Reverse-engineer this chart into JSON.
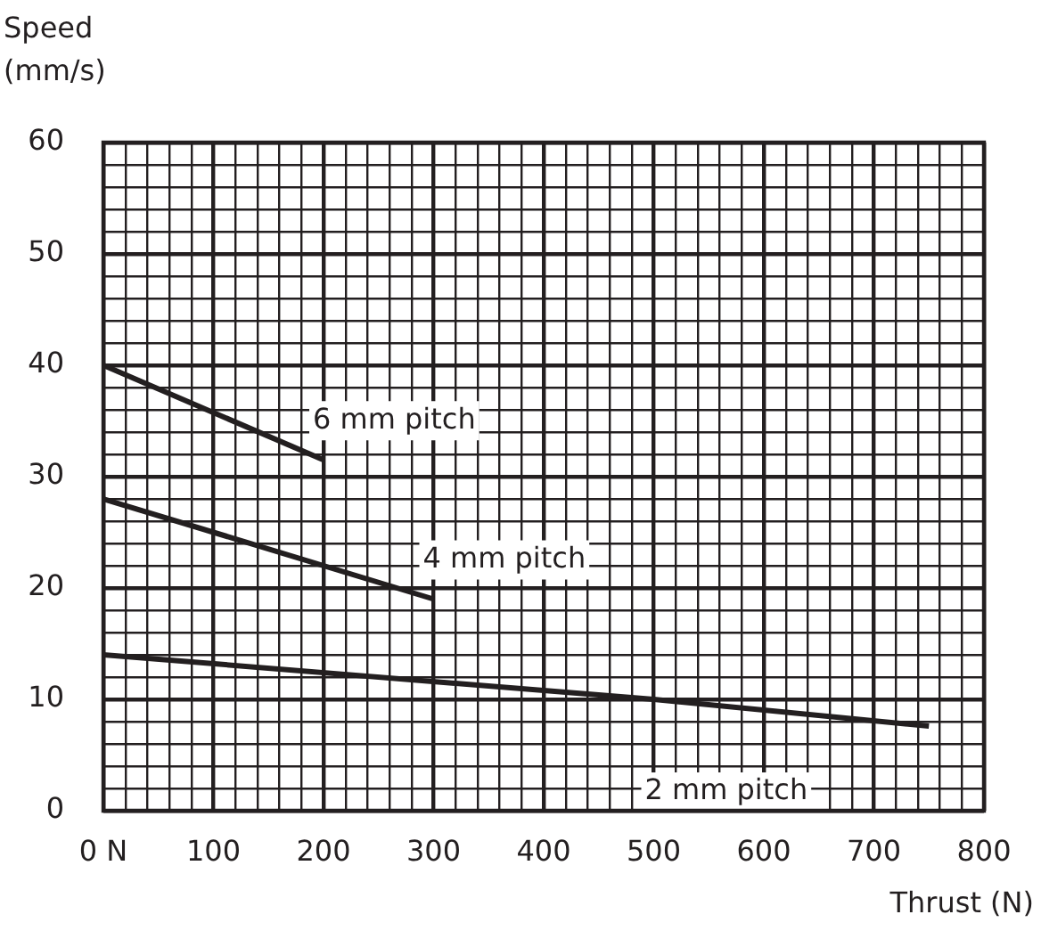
{
  "chart_data": {
    "type": "line",
    "xlabel": "Thrust (N)",
    "ylabel": "Speed (mm/s)",
    "xlim": [
      0,
      800
    ],
    "ylim": [
      0,
      60
    ],
    "grid": true,
    "legend": false,
    "marker": "none",
    "line_style": "solid",
    "xticks": [
      {
        "value": 0,
        "label": "0 N"
      },
      {
        "value": 20,
        "label": null
      },
      {
        "value": 40,
        "label": null
      },
      {
        "value": 60,
        "label": null
      },
      {
        "value": 80,
        "label": null
      },
      100,
      {
        "value": 120,
        "label": null
      },
      {
        "value": 140,
        "label": null
      },
      {
        "value": 160,
        "label": null
      },
      {
        "value": 180,
        "label": null
      },
      200,
      {
        "value": 220,
        "label": null
      },
      {
        "value": 240,
        "label": null
      },
      {
        "value": 260,
        "label": null
      },
      {
        "value": 280,
        "label": null
      },
      300,
      {
        "value": 320,
        "label": null
      },
      {
        "value": 340,
        "label": null
      },
      {
        "value": 360,
        "label": null
      },
      {
        "value": 380,
        "label": null
      },
      400,
      {
        "value": 420,
        "label": null
      },
      {
        "value": 440,
        "label": null
      },
      {
        "value": 460,
        "label": null
      },
      {
        "value": 480,
        "label": null
      },
      500,
      {
        "value": 520,
        "label": null
      },
      {
        "value": 540,
        "label": null
      },
      {
        "value": 560,
        "label": null
      },
      {
        "value": 580,
        "label": null
      },
      600,
      {
        "value": 620,
        "label": null
      },
      {
        "value": 640,
        "label": null
      },
      {
        "value": 660,
        "label": null
      },
      {
        "value": 680,
        "label": null
      },
      700,
      {
        "value": 720,
        "label": null
      },
      {
        "value": 740,
        "label": null
      },
      {
        "value": 760,
        "label": null
      },
      {
        "value": 780,
        "label": null
      },
      800
    ],
    "yticks": [
      0,
      {
        "value": 2,
        "label": null
      },
      {
        "value": 4,
        "label": null
      },
      {
        "value": 6,
        "label": null
      },
      {
        "value": 8,
        "label": null
      },
      10,
      {
        "value": 12,
        "label": null
      },
      {
        "value": 14,
        "label": null
      },
      {
        "value": 16,
        "label": null
      },
      {
        "value": 18,
        "label": null
      },
      20,
      {
        "value": 22,
        "label": null
      },
      {
        "value": 24,
        "label": null
      },
      {
        "value": 26,
        "label": null
      },
      {
        "value": 28,
        "label": null
      },
      30,
      {
        "value": 32,
        "label": null
      },
      {
        "value": 34,
        "label": null
      },
      {
        "value": 36,
        "label": null
      },
      {
        "value": 38,
        "label": null
      },
      40,
      {
        "value": 42,
        "label": null
      },
      {
        "value": 44,
        "label": null
      },
      {
        "value": 46,
        "label": null
      },
      {
        "value": 48,
        "label": null
      },
      50,
      {
        "value": 52,
        "label": null
      },
      {
        "value": 54,
        "label": null
      },
      {
        "value": 56,
        "label": null
      },
      {
        "value": 58,
        "label": null
      },
      60
    ],
    "series": [
      {
        "name": "6 mm pitch",
        "color": "#231f20",
        "x": [
          0,
          200
        ],
        "values": [
          40,
          31.5
        ]
      },
      {
        "name": "4 mm pitch",
        "color": "#231f20",
        "x": [
          0,
          300
        ],
        "values": [
          28,
          19
        ]
      },
      {
        "name": "2 mm pitch",
        "color": "#231f20",
        "x": [
          0,
          500,
          750
        ],
        "values": [
          14,
          10,
          7.6
        ]
      }
    ]
  }
}
